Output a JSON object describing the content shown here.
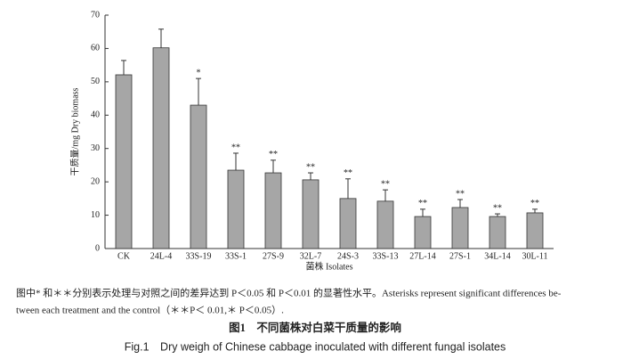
{
  "chart_data": {
    "type": "bar",
    "ylabel": "干质量/mg Dry biomass",
    "xlabel": "菌株 Isolates",
    "categories": [
      "CK",
      "24L-4",
      "33S-19",
      "33S-1",
      "27S-9",
      "32L-7",
      "24S-3",
      "33S-13",
      "27L-14",
      "27S-1",
      "34L-14",
      "30L-11"
    ],
    "values": [
      52.1,
      60.2,
      43.0,
      23.5,
      22.7,
      20.6,
      15.0,
      14.2,
      9.6,
      12.3,
      9.6,
      10.7
    ],
    "errors": [
      4.3,
      5.6,
      8.0,
      5.1,
      3.8,
      2.1,
      5.9,
      3.4,
      2.2,
      2.4,
      0.8,
      1.1
    ],
    "annotations": [
      null,
      null,
      "*",
      "**",
      "**",
      "**",
      "**",
      "**",
      "**",
      "**",
      "**",
      "**"
    ],
    "color": "#a6a6a6",
    "ylim": [
      0,
      70
    ],
    "yticks": [
      0,
      10,
      20,
      30,
      40,
      50,
      60,
      70
    ],
    "grid": false
  },
  "caption": {
    "note": [
      "图中* 和＊＊分别表示处理与对照之间的差异达到 P＜0.05 和 P＜0.01 的显著性水平。Asterisks represent significant differences be-",
      "tween each treatment and the control（＊＊P＜ 0.01,＊ P＜0.05）."
    ],
    "title_cn": "图1　不同菌株对白菜干质量的影响",
    "title_en": "Fig.1　Dry weigh of Chinese cabbage inoculated with different fungal isolates"
  }
}
